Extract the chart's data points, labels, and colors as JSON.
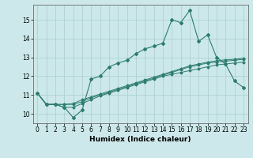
{
  "title": "",
  "xlabel": "Humidex (Indice chaleur)",
  "bg_color": "#cce8ea",
  "line_color": "#2e7d6e",
  "xlim": [
    -0.5,
    23.5
  ],
  "ylim": [
    9.5,
    15.8
  ],
  "x": [
    0,
    1,
    2,
    3,
    4,
    5,
    6,
    7,
    8,
    9,
    10,
    11,
    12,
    13,
    14,
    15,
    16,
    17,
    18,
    19,
    20,
    21,
    22,
    23
  ],
  "main_y": [
    11.1,
    10.5,
    10.5,
    10.35,
    9.8,
    10.2,
    11.85,
    12.0,
    12.5,
    12.7,
    12.85,
    13.2,
    13.45,
    13.6,
    13.75,
    15.0,
    14.85,
    15.5,
    13.85,
    14.2,
    13.0,
    12.65,
    11.75,
    11.4
  ],
  "line2_y": [
    11.1,
    10.5,
    10.5,
    10.35,
    10.35,
    10.55,
    10.75,
    10.95,
    11.1,
    11.25,
    11.4,
    11.55,
    11.7,
    11.85,
    12.0,
    12.1,
    12.2,
    12.3,
    12.4,
    12.5,
    12.6,
    12.65,
    12.7,
    12.75
  ],
  "line3_y": [
    11.1,
    10.5,
    10.5,
    10.5,
    10.5,
    10.65,
    10.85,
    11.0,
    11.15,
    11.3,
    11.45,
    11.6,
    11.75,
    11.9,
    12.05,
    12.2,
    12.35,
    12.5,
    12.6,
    12.7,
    12.75,
    12.8,
    12.85,
    12.9
  ],
  "line4_y": [
    11.1,
    10.5,
    10.5,
    10.5,
    10.55,
    10.75,
    10.9,
    11.05,
    11.2,
    11.35,
    11.5,
    11.65,
    11.8,
    11.95,
    12.1,
    12.25,
    12.4,
    12.55,
    12.65,
    12.75,
    12.82,
    12.87,
    12.9,
    12.95
  ],
  "yticks": [
    10,
    11,
    12,
    13,
    14,
    15
  ],
  "xticks": [
    0,
    1,
    2,
    3,
    4,
    5,
    6,
    7,
    8,
    9,
    10,
    11,
    12,
    13,
    14,
    15,
    16,
    17,
    18,
    19,
    20,
    21,
    22,
    23
  ],
  "grid_color": "#aacdd0",
  "spine_color": "#555555",
  "tick_fontsize": 5.5,
  "xlabel_fontsize": 6.5
}
